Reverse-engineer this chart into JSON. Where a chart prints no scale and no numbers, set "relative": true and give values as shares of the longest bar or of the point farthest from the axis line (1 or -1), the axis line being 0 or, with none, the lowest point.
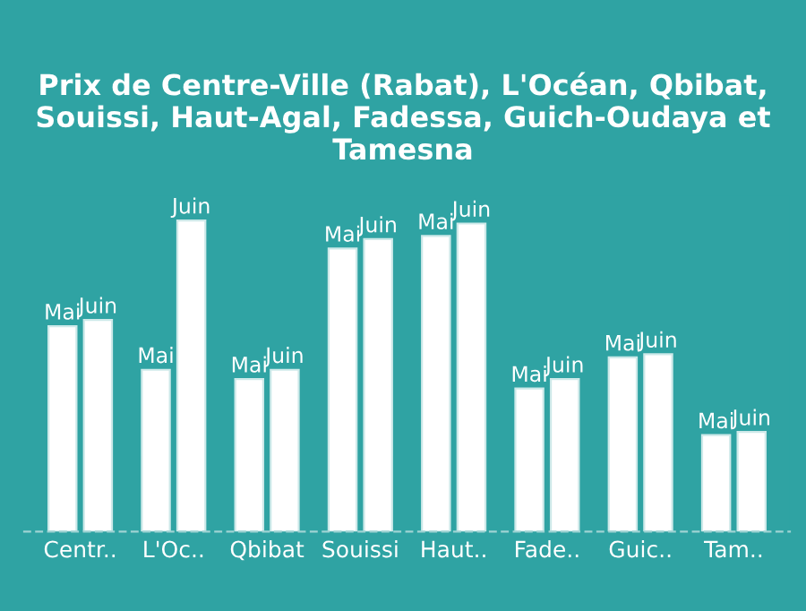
{
  "chart_data": {
    "type": "bar",
    "title": "Prix de Centre-Ville (Rabat), L'Océan, Qbibat, Souissi, Haut-Agal, Fadessa, Guich-Oudaya et Tamesna",
    "categories": [
      "Centr..",
      "L'Oc..",
      "Qbibat",
      "Souissi",
      "Haut..",
      "Fade..",
      "Guic..",
      "Tam.."
    ],
    "relative": true,
    "legend": false,
    "grid": false,
    "series": [
      {
        "name": "Mai",
        "color": "#ffffff",
        "values": [
          0.66,
          0.52,
          0.49,
          0.91,
          0.95,
          0.46,
          0.56,
          0.31
        ]
      },
      {
        "name": "Juin",
        "color": "#ffffff",
        "values": [
          0.68,
          1.0,
          0.52,
          0.94,
          0.99,
          0.49,
          0.57,
          0.32
        ]
      }
    ]
  }
}
